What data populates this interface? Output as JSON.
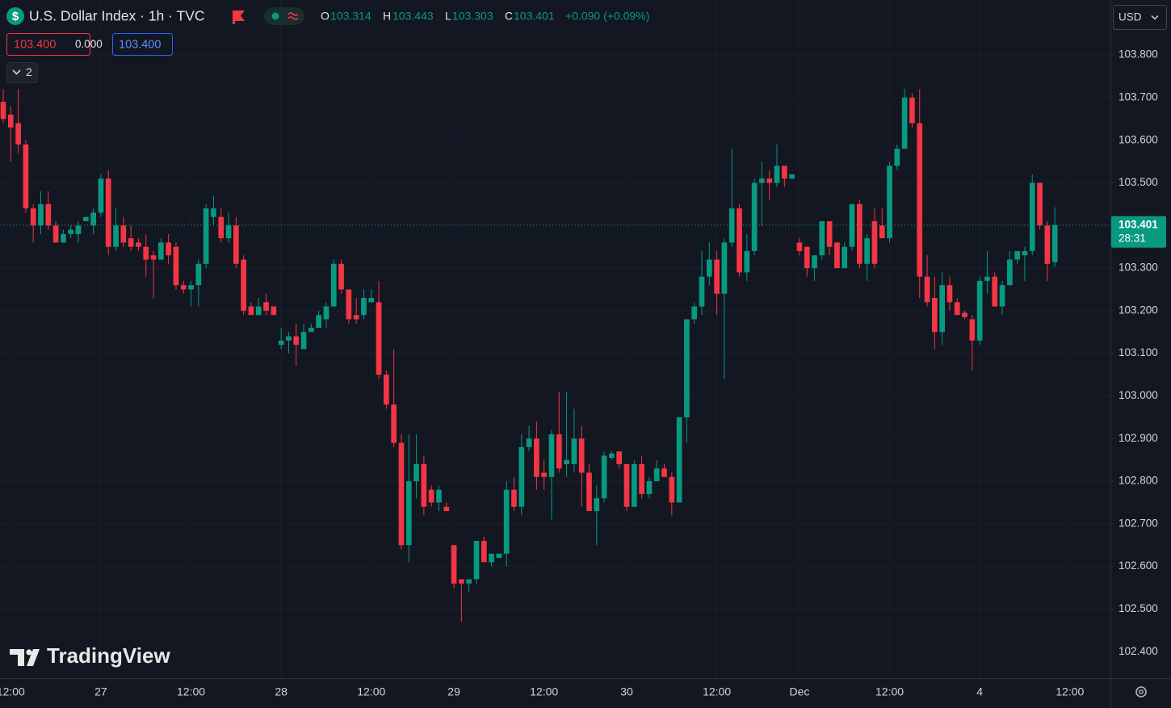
{
  "chart_data": {
    "type": "candlestick",
    "symbol_icon": "$",
    "title": "U.S. Dollar Index · 1h · TVC",
    "ohlc_letters": [
      "O",
      "H",
      "L",
      "C"
    ],
    "change": "+0.090 (+0.09%)",
    "bid": "103.400",
    "spread": "0.000",
    "ask": "103.400",
    "indicators_count": "2",
    "currency": "USD",
    "countdown": "28:31",
    "watermark": "TradingView",
    "up_color": "#089981",
    "down_color": "#f23645",
    "grid": true,
    "xlim": [
      -0.43,
      147.4
    ],
    "ylim": [
      102.338,
      103.929
    ],
    "yticks": [
      {
        "value": 102.4,
        "label": "102.400"
      },
      {
        "value": 102.5,
        "label": "102.500"
      },
      {
        "value": 102.6,
        "label": "102.600"
      },
      {
        "value": 102.7,
        "label": "102.700"
      },
      {
        "value": 102.8,
        "label": "102.800"
      },
      {
        "value": 102.9,
        "label": "102.900"
      },
      {
        "value": 103.0,
        "label": "103.000"
      },
      {
        "value": 103.1,
        "label": "103.100"
      },
      {
        "value": 103.2,
        "label": "103.200"
      },
      {
        "value": 103.3,
        "label": "103.300"
      },
      {
        "value": 103.4,
        "label": "103.400"
      },
      {
        "value": 103.5,
        "label": "103.500"
      },
      {
        "value": 103.6,
        "label": "103.600"
      },
      {
        "value": 103.7,
        "label": "103.700"
      },
      {
        "value": 103.8,
        "label": "103.800"
      }
    ],
    "xticks": [
      {
        "value": 1,
        "label": "12:00"
      },
      {
        "value": 13,
        "label": "27"
      },
      {
        "value": 25,
        "label": "12:00"
      },
      {
        "value": 37,
        "label": "28"
      },
      {
        "value": 49,
        "label": "12:00"
      },
      {
        "value": 60,
        "label": "29"
      },
      {
        "value": 72,
        "label": "12:00"
      },
      {
        "value": 83,
        "label": "30"
      },
      {
        "value": 95,
        "label": "12:00"
      },
      {
        "value": 106,
        "label": "Dec"
      },
      {
        "value": 118,
        "label": "12:00"
      },
      {
        "value": 130,
        "label": "4"
      },
      {
        "value": 142,
        "label": "12:00"
      }
    ],
    "x": [
      0,
      1,
      2,
      3,
      4,
      5,
      6,
      7,
      8,
      9,
      10,
      11,
      12,
      13,
      14,
      15,
      16,
      17,
      18,
      19,
      20,
      21,
      22,
      23,
      24,
      25,
      26,
      27,
      28,
      29,
      30,
      31,
      32,
      33,
      34,
      35,
      36,
      37,
      38,
      39,
      40,
      41,
      42,
      43,
      44,
      45,
      46,
      47,
      48,
      49,
      50,
      51,
      52,
      53,
      54,
      55,
      56,
      57,
      58,
      59,
      60,
      61,
      62,
      63,
      64,
      65,
      66,
      67,
      68,
      69,
      70,
      71,
      72,
      73,
      74,
      75,
      76,
      77,
      78,
      79,
      80,
      81,
      82,
      83,
      84,
      85,
      86,
      87,
      88,
      89,
      90,
      91,
      92,
      93,
      94,
      95,
      96,
      97,
      98,
      99,
      100,
      101,
      102,
      103,
      104,
      105,
      106,
      107,
      108,
      109,
      110,
      111,
      112,
      113,
      114,
      115,
      116,
      117,
      118,
      119,
      120,
      121,
      122,
      123,
      124,
      125,
      126,
      127,
      128,
      129,
      130,
      131,
      132,
      133,
      134,
      135,
      136,
      137,
      138,
      139,
      140
    ],
    "open": [
      103.69,
      103.66,
      103.64,
      103.59,
      103.44,
      103.4,
      103.45,
      103.4,
      103.36,
      103.38,
      103.38,
      103.41,
      103.4,
      103.43,
      103.51,
      103.35,
      103.4,
      103.37,
      103.36,
      103.35,
      103.33,
      103.32,
      103.36,
      103.35,
      103.26,
      103.25,
      103.26,
      103.31,
      103.42,
      103.42,
      103.37,
      103.4,
      103.32,
      103.21,
      103.19,
      103.22,
      103.21,
      103.12,
      103.13,
      103.14,
      103.11,
      103.15,
      103.16,
      103.18,
      103.21,
      103.31,
      103.25,
      103.19,
      103.19,
      103.22,
      103.22,
      103.05,
      102.98,
      102.89,
      102.65,
      102.8,
      102.84,
      102.78,
      102.75,
      102.74,
      102.65,
      102.57,
      102.56,
      102.57,
      102.66,
      102.61,
      102.62,
      102.63,
      102.78,
      102.74,
      102.88,
      102.9,
      102.82,
      102.81,
      102.91,
      102.84,
      102.84,
      102.9,
      102.82,
      102.73,
      102.76,
      102.855,
      102.87,
      102.84,
      102.74,
      102.84,
      102.77,
      102.8,
      102.83,
      102.81,
      102.75,
      102.95,
      103.18,
      103.21,
      103.28,
      103.32,
      103.24,
      103.36,
      103.44,
      103.29,
      103.34,
      103.5,
      103.51,
      103.5,
      103.54,
      103.51,
      103.36,
      103.35,
      103.3,
      103.33,
      103.41,
      103.36,
      103.3,
      103.35,
      103.45,
      103.31,
      103.41,
      103.4,
      103.37,
      103.54,
      103.58,
      103.7,
      103.64,
      103.28,
      103.23,
      103.15,
      103.26,
      103.22,
      103.195,
      103.18,
      103.13,
      103.27,
      103.28,
      103.21,
      103.26,
      103.32,
      103.33,
      103.34,
      103.5,
      103.4,
      103.314
    ],
    "high": [
      103.72,
      103.68,
      103.72,
      103.6,
      103.45,
      103.48,
      103.48,
      103.41,
      103.39,
      103.4,
      103.41,
      103.42,
      103.44,
      103.52,
      103.53,
      103.44,
      103.42,
      103.4,
      103.37,
      103.38,
      103.34,
      103.37,
      103.38,
      103.36,
      103.27,
      103.27,
      103.32,
      103.45,
      103.47,
      103.44,
      103.43,
      103.42,
      103.33,
      103.22,
      103.23,
      103.24,
      103.21,
      103.16,
      103.15,
      103.17,
      103.17,
      103.17,
      103.2,
      103.22,
      103.32,
      103.32,
      103.25,
      103.23,
      103.25,
      103.25,
      103.27,
      103.06,
      103.11,
      102.91,
      102.91,
      102.91,
      102.86,
      102.79,
      102.79,
      102.75,
      102.65,
      102.57,
      102.57,
      102.66,
      102.67,
      102.63,
      102.63,
      102.8,
      102.81,
      102.91,
      102.93,
      102.94,
      102.85,
      102.92,
      103.01,
      103.01,
      102.97,
      102.93,
      102.84,
      102.79,
      102.87,
      102.87,
      102.87,
      102.84,
      102.85,
      102.86,
      102.81,
      102.85,
      102.84,
      102.82,
      102.95,
      103.18,
      103.22,
      103.34,
      103.36,
      103.34,
      103.37,
      103.58,
      103.45,
      103.38,
      103.51,
      103.55,
      103.53,
      103.59,
      103.54,
      103.52,
      103.37,
      103.35,
      103.33,
      103.41,
      103.41,
      103.36,
      103.36,
      103.45,
      103.46,
      103.38,
      103.44,
      103.44,
      103.55,
      103.59,
      103.72,
      103.71,
      103.72,
      103.33,
      103.28,
      103.29,
      103.28,
      103.23,
      103.2,
      103.19,
      103.28,
      103.34,
      103.29,
      103.27,
      103.34,
      103.34,
      103.35,
      103.52,
      103.5,
      103.41,
      103.443
    ],
    "low": [
      103.64,
      103.55,
      103.57,
      103.43,
      103.36,
      103.38,
      103.39,
      103.36,
      103.36,
      103.37,
      103.36,
      103.41,
      103.38,
      103.42,
      103.33,
      103.34,
      103.35,
      103.34,
      103.34,
      103.28,
      103.23,
      103.32,
      103.31,
      103.25,
      103.24,
      103.21,
      103.21,
      103.3,
      103.4,
      103.36,
      103.36,
      103.3,
      103.19,
      103.19,
      103.19,
      103.19,
      103.19,
      103.11,
      103.1,
      103.07,
      103.11,
      103.15,
      103.16,
      103.16,
      103.21,
      103.24,
      103.17,
      103.17,
      103.18,
      103.22,
      103.04,
      102.97,
      102.88,
      102.64,
      102.61,
      102.76,
      102.72,
      102.74,
      102.73,
      102.73,
      102.55,
      102.47,
      102.54,
      102.56,
      102.61,
      102.6,
      102.62,
      102.6,
      102.73,
      102.72,
      102.87,
      102.78,
      102.78,
      102.71,
      102.82,
      102.81,
      102.82,
      102.74,
      102.73,
      102.65,
      102.75,
      102.85,
      102.83,
      102.73,
      102.74,
      102.76,
      102.76,
      102.8,
      102.81,
      102.72,
      102.75,
      102.89,
      103.17,
      103.19,
      103.26,
      103.19,
      103.04,
      103.35,
      103.28,
      103.27,
      103.33,
      103.4,
      103.46,
      103.49,
      103.49,
      103.51,
      103.33,
      103.28,
      103.27,
      103.32,
      103.33,
      103.3,
      103.3,
      103.34,
      103.3,
      103.27,
      103.3,
      103.37,
      103.36,
      103.53,
      103.58,
      103.63,
      103.23,
      103.21,
      103.11,
      103.12,
      103.2,
      103.19,
      103.18,
      103.06,
      103.12,
      103.24,
      103.21,
      103.19,
      103.26,
      103.31,
      103.27,
      103.33,
      103.39,
      103.27,
      103.303
    ],
    "close": [
      103.65,
      103.63,
      103.59,
      103.44,
      103.4,
      103.45,
      103.4,
      103.36,
      103.38,
      103.39,
      103.4,
      103.42,
      103.43,
      103.51,
      103.35,
      103.4,
      103.36,
      103.35,
      103.35,
      103.32,
      103.32,
      103.36,
      103.33,
      103.26,
      103.25,
      103.26,
      103.31,
      103.44,
      103.44,
      103.37,
      103.4,
      103.31,
      103.2,
      103.19,
      103.21,
      103.2,
      103.19,
      103.13,
      103.14,
      103.12,
      103.15,
      103.16,
      103.19,
      103.21,
      103.31,
      103.25,
      103.18,
      103.18,
      103.23,
      103.23,
      103.05,
      102.98,
      102.89,
      102.65,
      102.8,
      102.84,
      102.74,
      102.75,
      102.78,
      102.73,
      102.56,
      102.56,
      102.57,
      102.66,
      102.61,
      102.63,
      102.63,
      102.78,
      102.74,
      102.88,
      102.9,
      102.81,
      102.81,
      102.91,
      102.83,
      102.85,
      102.9,
      102.82,
      102.73,
      102.76,
      102.86,
      102.865,
      102.84,
      102.74,
      102.84,
      102.77,
      102.8,
      102.83,
      102.81,
      102.75,
      102.95,
      103.18,
      103.21,
      103.28,
      103.32,
      103.24,
      103.36,
      103.44,
      103.29,
      103.34,
      103.5,
      103.51,
      103.5,
      103.54,
      103.51,
      103.52,
      103.34,
      103.3,
      103.33,
      103.41,
      103.35,
      103.3,
      103.35,
      103.45,
      103.31,
      103.37,
      103.31,
      103.37,
      103.54,
      103.58,
      103.7,
      103.64,
      103.28,
      103.22,
      103.15,
      103.26,
      103.22,
      103.19,
      103.185,
      103.13,
      103.27,
      103.28,
      103.21,
      103.26,
      103.32,
      103.34,
      103.34,
      103.5,
      103.4,
      103.31,
      103.401
    ]
  }
}
